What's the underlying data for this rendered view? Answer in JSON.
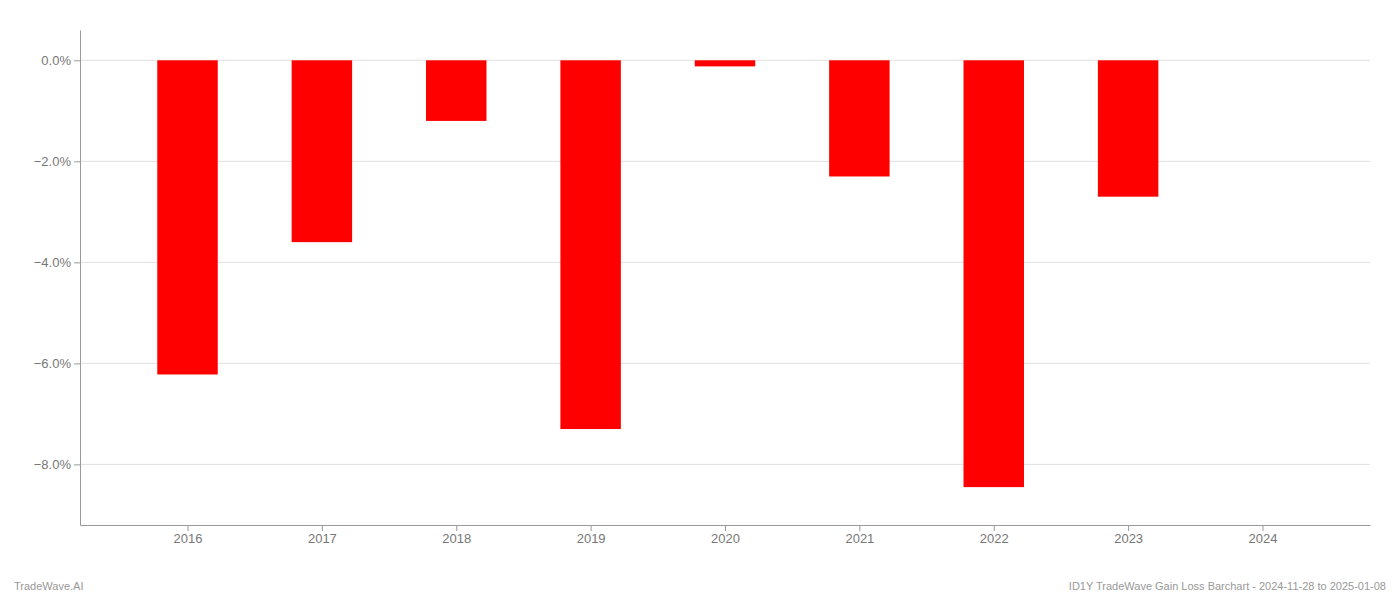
{
  "chart_data": {
    "type": "bar",
    "x": [
      2016,
      2017,
      2018,
      2019,
      2020,
      2021,
      2022,
      2023,
      2024
    ],
    "values": [
      -6.22,
      -3.6,
      -1.2,
      -7.3,
      -0.12,
      -2.3,
      -8.45,
      -2.7,
      0.0
    ],
    "color": "#ff0000",
    "xlim": [
      2015.2,
      2024.8
    ],
    "xticks": [
      2016,
      2017,
      2018,
      2019,
      2020,
      2021,
      2022,
      2023,
      2024
    ],
    "ylim": [
      -9.2,
      0.6
    ],
    "yticks": [
      {
        "value": 0.0,
        "label": "0.0%"
      },
      {
        "value": -2.0,
        "label": "−2.0%"
      },
      {
        "value": -4.0,
        "label": "−4.0%"
      },
      {
        "value": -6.0,
        "label": "−6.0%"
      },
      {
        "value": -8.0,
        "label": "−8.0%"
      }
    ],
    "grid": true,
    "annotations": [
      "TradeWave.AI",
      "ID1Y TradeWave Gain Loss Barchart - 2024-11-28 to 2025-01-08"
    ]
  }
}
